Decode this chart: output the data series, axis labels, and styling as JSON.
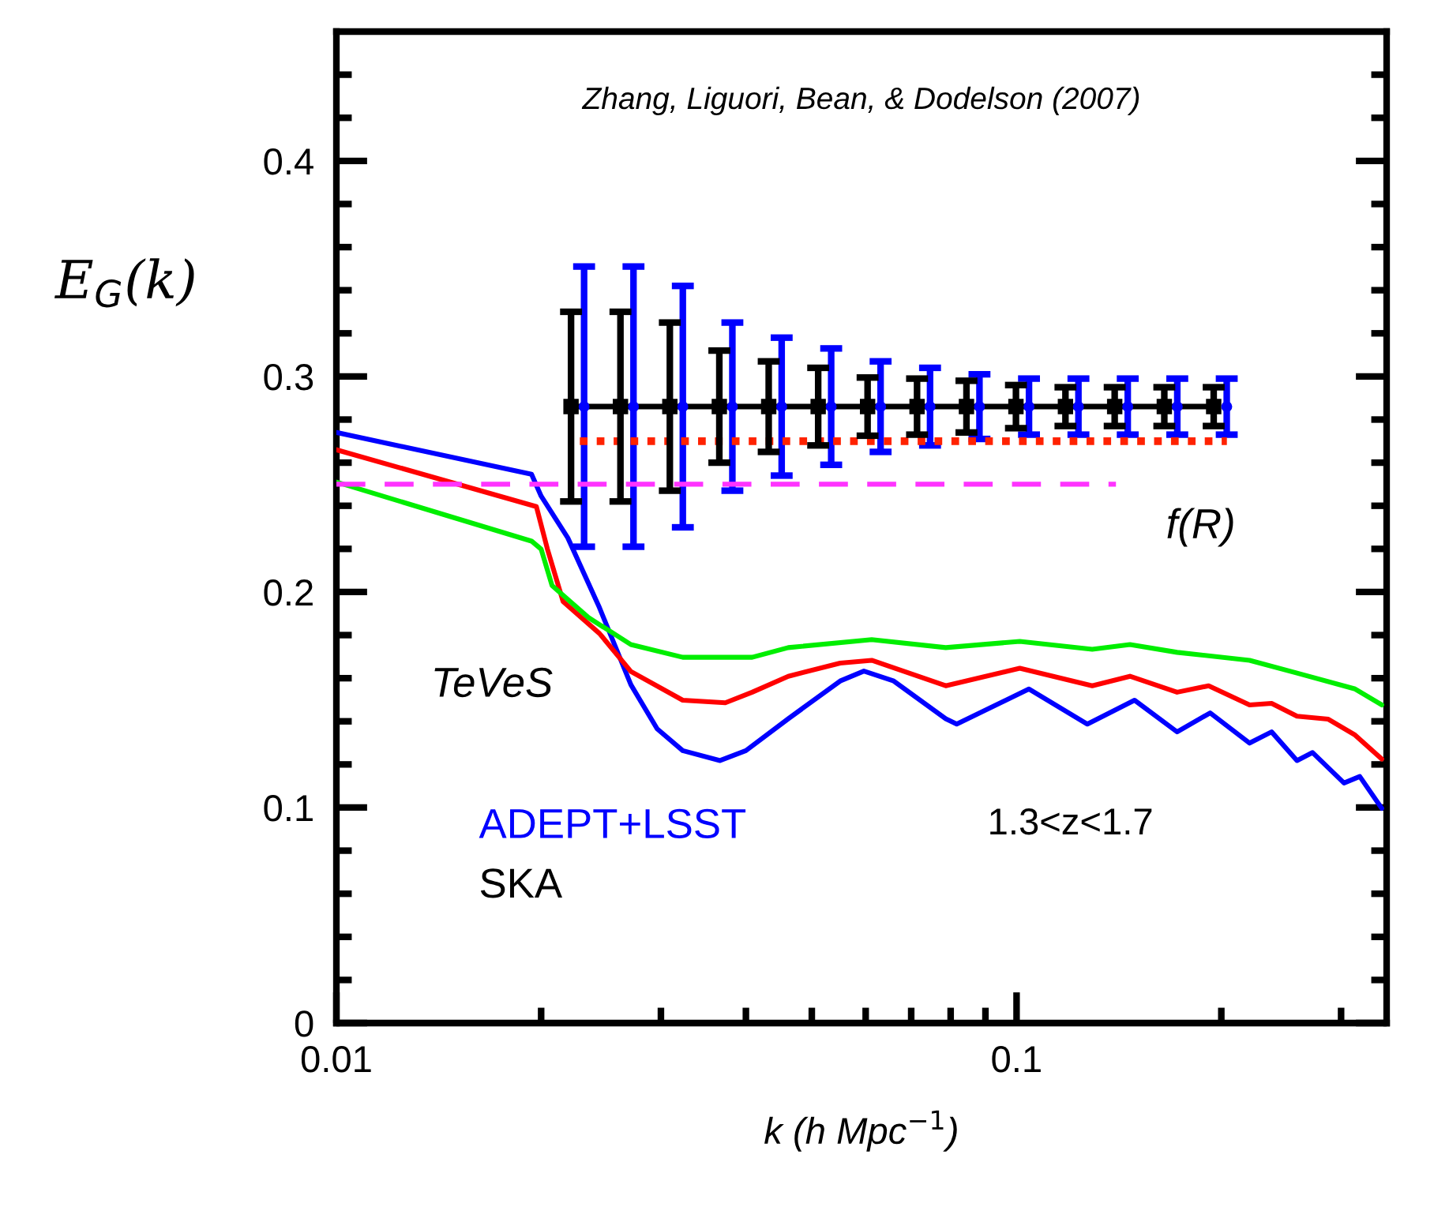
{
  "chart_data": {
    "type": "line",
    "xlabel": "k (h Mpc$^{−1}$)",
    "ylabel": "E$_{G}$(k)",
    "log": "x",
    "grid": false,
    "legend": "bottom left",
    "tick_labels": true,
    "xlim": [
      0.01,
      0.35
    ],
    "ylim": [
      0,
      0.46
    ],
    "xticks": [
      {
        "value": 0.01,
        "label": "0.01"
      },
      {
        "value": 0.02,
        "label": null
      },
      {
        "value": 0.03,
        "label": null
      },
      {
        "value": 0.04,
        "label": null
      },
      {
        "value": 0.05,
        "label": null
      },
      {
        "value": 0.06,
        "label": null
      },
      {
        "value": 0.07,
        "label": null
      },
      {
        "value": 0.08,
        "label": null
      },
      {
        "value": 0.09,
        "label": null
      },
      {
        "value": 0.1,
        "label": "0.1"
      },
      {
        "value": 0.2,
        "label": null
      },
      {
        "value": 0.3,
        "label": null
      }
    ],
    "yticks": [
      0,
      {
        "value": 0.02,
        "label": null
      },
      {
        "value": 0.04,
        "label": null
      },
      {
        "value": 0.06,
        "label": null
      },
      {
        "value": 0.08,
        "label": null
      },
      0.1,
      {
        "value": 0.12,
        "label": null
      },
      {
        "value": 0.14,
        "label": null
      },
      {
        "value": 0.16,
        "label": null
      },
      {
        "value": 0.18,
        "label": null
      },
      0.2,
      {
        "value": 0.22,
        "label": null
      },
      {
        "value": 0.24,
        "label": null
      },
      {
        "value": 0.26,
        "label": null
      },
      {
        "value": 0.28,
        "label": null
      },
      0.3,
      {
        "value": 0.32,
        "label": null
      },
      {
        "value": 0.34,
        "label": null
      },
      {
        "value": 0.36,
        "label": null
      },
      {
        "value": 0.38,
        "label": null
      },
      0.4,
      {
        "value": 0.42,
        "label": null
      },
      {
        "value": 0.44,
        "label": null
      }
    ],
    "series": [
      {
        "color": "#0000ff",
        "line_style": "solid",
        "x": [
          0.01,
          0.01936,
          0.02,
          0.02189,
          0.02436,
          0.0271,
          0.02962,
          0.0323,
          0.03665,
          0.04,
          0.04617,
          0.05504,
          0.05964,
          0.06598,
          0.07868,
          0.08166,
          0.1043,
          0.1271,
          0.1491,
          0.1722,
          0.1926,
          0.2201,
          0.2371,
          0.2584,
          0.2724,
          0.303,
          0.3196,
          0.3443
        ],
        "values": [
          0.274,
          0.2546,
          0.2445,
          0.2251,
          0.1928,
          0.157,
          0.1365,
          0.1264,
          0.1218,
          0.1264,
          0.1412,
          0.1587,
          0.1633,
          0.1587,
          0.1412,
          0.1387,
          0.155,
          0.1387,
          0.1498,
          0.1351,
          0.1439,
          0.1299,
          0.1351,
          0.1218,
          0.1255,
          0.1114,
          0.1144,
          0.0996
        ]
      },
      {
        "color": "#ff0000",
        "line_style": "solid",
        "x": [
          0.01,
          0.01968,
          0.02043,
          0.02154,
          0.02436,
          0.0271,
          0.0323,
          0.03731,
          0.04086,
          0.04617,
          0.05504,
          0.06124,
          0.07868,
          0.1011,
          0.1292,
          0.1468,
          0.1722,
          0.1916,
          0.2201,
          0.2371,
          0.2584,
          0.2873,
          0.3146,
          0.3443
        ],
        "values": [
          0.266,
          0.2396,
          0.2199,
          0.1956,
          0.1808,
          0.1631,
          0.1498,
          0.1486,
          0.1535,
          0.1609,
          0.167,
          0.1683,
          0.1565,
          0.1646,
          0.1565,
          0.1609,
          0.1535,
          0.1565,
          0.1476,
          0.1483,
          0.1424,
          0.141,
          0.1336,
          0.1225
        ]
      },
      {
        "color": "#00ee00",
        "line_style": "solid",
        "x": [
          0.01,
          0.01936,
          0.02,
          0.02075,
          0.02346,
          0.0271,
          0.0323,
          0.04086,
          0.04617,
          0.06124,
          0.07868,
          0.1011,
          0.1292,
          0.1468,
          0.1722,
          0.2201,
          0.2584,
          0.3146,
          0.3443
        ],
        "values": [
          0.251,
          0.2236,
          0.2199,
          0.203,
          0.1882,
          0.1756,
          0.1697,
          0.1697,
          0.1742,
          0.1779,
          0.1742,
          0.1771,
          0.1734,
          0.1756,
          0.172,
          0.1683,
          0.1624,
          0.155,
          0.1476
        ]
      },
      {
        "color": "#ff33ff",
        "line_style": "dashed",
        "x": [
          0.01,
          0.14
        ],
        "values": [
          0.25,
          0.25
        ]
      },
      {
        "color": "#ff2200",
        "line_style": "dotted",
        "x": [
          0.0228,
          0.2038
        ],
        "values": [
          0.27,
          0.27
        ]
      },
      {
        "name": "ADEPT+LSST",
        "type": "scatter",
        "marker": "circle",
        "color": "#0000ff",
        "x": [
          0.02313,
          0.02734,
          0.03231,
          0.03821,
          0.04515,
          0.05339,
          0.06311,
          0.07461,
          0.0882,
          0.1043,
          0.1233,
          0.1457,
          0.1723,
          0.2037
        ],
        "values": [
          0.286,
          0.286,
          0.286,
          0.286,
          0.286,
          0.286,
          0.286,
          0.286,
          0.286,
          0.286,
          0.286,
          0.286,
          0.286,
          0.286
        ],
        "errors": [
          0.065,
          0.065,
          0.056,
          0.039,
          0.032,
          0.027,
          0.021,
          0.018,
          0.015,
          0.013,
          0.013,
          0.013,
          0.013,
          0.013
        ]
      },
      {
        "name": "SKA",
        "type": "line",
        "marker": "square",
        "line_style": "solid",
        "color": "#000000",
        "x": [
          0.02213,
          0.02616,
          0.03092,
          0.03656,
          0.04321,
          0.05109,
          0.06039,
          0.0714,
          0.0844,
          0.09979,
          0.118,
          0.1394,
          0.1649,
          0.1949
        ],
        "values": [
          0.286,
          0.286,
          0.286,
          0.286,
          0.286,
          0.286,
          0.286,
          0.286,
          0.286,
          0.286,
          0.286,
          0.286,
          0.286,
          0.286
        ],
        "errors": [
          0.044,
          0.044,
          0.039,
          0.026,
          0.021,
          0.018,
          0.0135,
          0.013,
          0.012,
          0.01,
          0.009,
          0.009,
          0.009,
          0.009
        ]
      }
    ],
    "annotations": [
      "Zhang, Liguori, Bean, & Dodelson (2007)",
      "TeVeS",
      "f(R)",
      "1.3<z<1.7"
    ]
  }
}
